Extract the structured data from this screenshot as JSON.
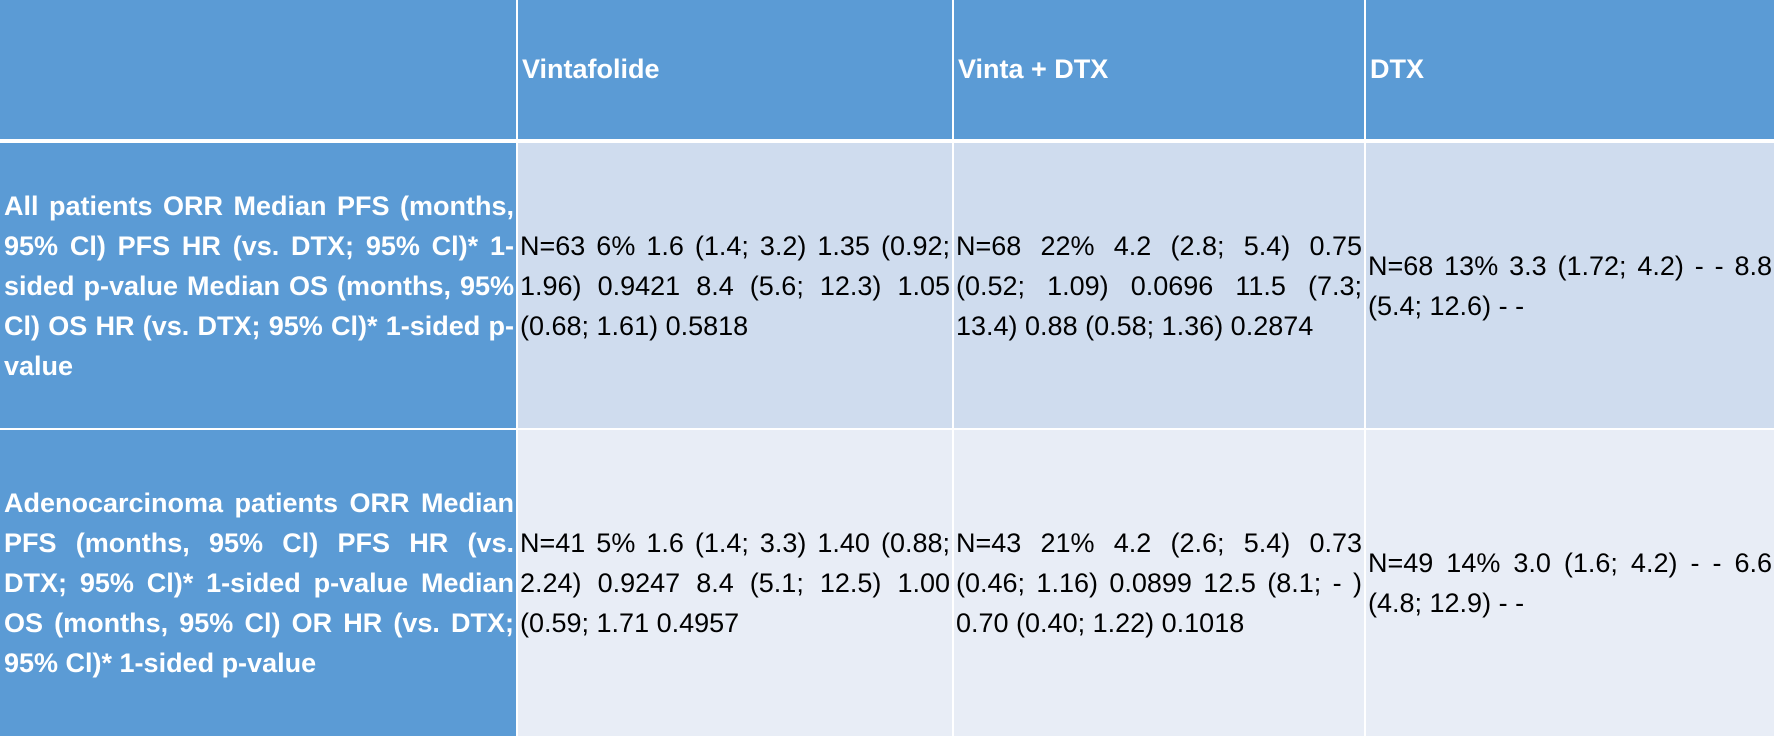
{
  "table": {
    "headers": [
      "",
      "Vintafolide",
      "Vinta + DTX",
      "DTX"
    ],
    "rows": [
      {
        "label": "All patients ORR Median PFS (months, 95% Cl) PFS HR (vs. DTX; 95% Cl)* 1-sided p-value Median OS (months, 95% Cl) OS HR (vs. DTX; 95% Cl)* 1-sided p-value",
        "cells": [
          "N=63 6% 1.6 (1.4; 3.2) 1.35 (0.92; 1.96) 0.9421 8.4 (5.6; 12.3) 1.05 (0.68; 1.61) 0.5818",
          "N=68 22% 4.2 (2.8; 5.4) 0.75 (0.52; 1.09) 0.0696 11.5 (7.3; 13.4) 0.88 (0.58; 1.36) 0.2874",
          "N=68 13% 3.3 (1.72; 4.2) - - 8.8 (5.4; 12.6) - -"
        ]
      },
      {
        "label": "Adenocarcinoma patients ORR Median PFS (months, 95% Cl) PFS HR (vs. DTX; 95% Cl)* 1-sided p-value Median OS (months, 95% Cl) OR HR (vs. DTX; 95% Cl)* 1-sided p-value",
        "cells": [
          "N=41 5% 1.6 (1.4; 3.3) 1.40 (0.88; 2.24) 0.9247 8.4 (5.1; 12.5) 1.00 (0.59; 1.71 0.4957",
          "N=43 21% 4.2 (2.6; 5.4) 0.73 (0.46; 1.16) 0.0899 12.5 (8.1; - ) 0.70 (0.40; 1.22) 0.1018",
          "N=49 14% 3.0 (1.6; 4.2) - - 6.6 (4.8; 12.9) - -"
        ]
      }
    ]
  }
}
